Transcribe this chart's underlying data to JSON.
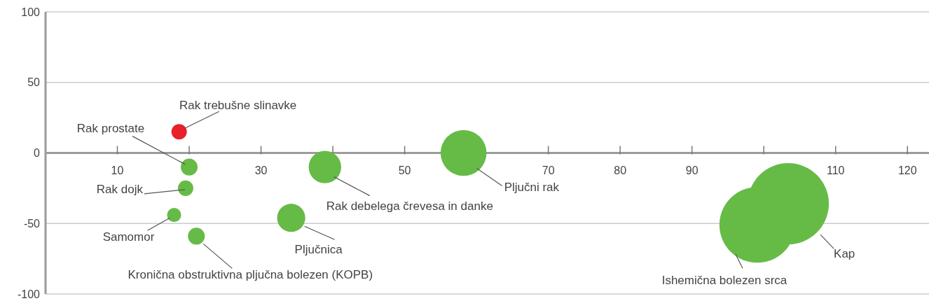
{
  "chart_data": {
    "type": "bubble",
    "xlim": [
      0,
      123
    ],
    "ylim": [
      -100,
      100
    ],
    "xticks": [
      10,
      {
        "value": 20,
        "label": null
      },
      30,
      {
        "value": 40,
        "label": null
      },
      50,
      {
        "value": 60,
        "label": null
      },
      70,
      80,
      90,
      {
        "value": 100,
        "label": null
      },
      110,
      120
    ],
    "yticks": [
      -100,
      -50,
      0,
      50,
      100
    ],
    "grid": "y",
    "series": [
      {
        "name": "Rak trebušne slinavke",
        "color": "#e8202a",
        "x": [
          18.6
        ],
        "values": [
          15
        ],
        "sizes": [
          0.036
        ]
      },
      {
        "name": "Rak prostate",
        "color": "#66bb47",
        "x": [
          20
        ],
        "values": [
          -10
        ],
        "sizes": [
          0.043
        ]
      },
      {
        "name": "Rak dojk",
        "color": "#66bb47",
        "x": [
          19.5
        ],
        "values": [
          -25
        ],
        "sizes": [
          0.036
        ]
      },
      {
        "name": "Samomor",
        "color": "#66bb47",
        "x": [
          17.9
        ],
        "values": [
          -44
        ],
        "sizes": [
          0.03
        ]
      },
      {
        "name": "Kronična obstruktivna pljučna bolezen (KOPB)",
        "color": "#66bb47",
        "x": [
          21
        ],
        "values": [
          -59
        ],
        "sizes": [
          0.043
        ]
      },
      {
        "name": "Rak debelega črevesa in danke",
        "color": "#66bb47",
        "x": [
          38.9
        ],
        "values": [
          -10
        ],
        "sizes": [
          0.16
        ]
      },
      {
        "name": "Pljučnica",
        "color": "#66bb47",
        "x": [
          34.2
        ],
        "values": [
          -46
        ],
        "sizes": [
          0.12
        ]
      },
      {
        "name": "Pljučni rak",
        "color": "#66bb47",
        "x": [
          58.2
        ],
        "values": [
          0
        ],
        "sizes": [
          0.32
        ]
      },
      {
        "name": "Ishemična bolezen srca",
        "color": "#66bb47",
        "x": [
          99.1
        ],
        "values": [
          -51
        ],
        "sizes": [
          0.87
        ]
      },
      {
        "name": "Kap",
        "color": "#66bb47",
        "x": [
          103.4
        ],
        "values": [
          -36
        ],
        "sizes": [
          1
        ]
      }
    ]
  }
}
